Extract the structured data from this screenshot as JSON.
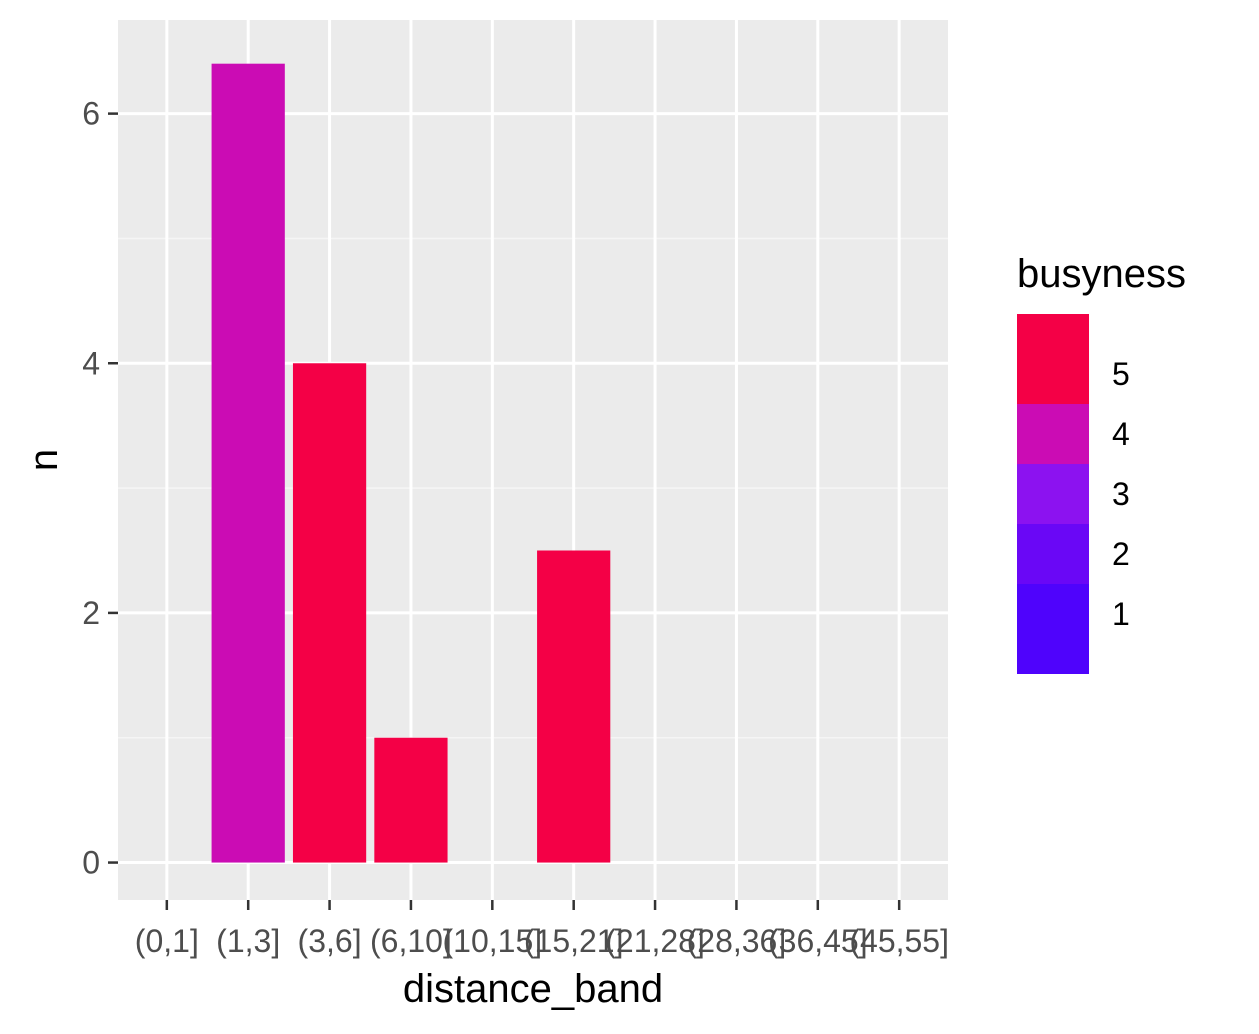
{
  "chart_data": {
    "type": "bar",
    "title": "",
    "xlabel": "distance_band",
    "ylabel": "n",
    "ylim": [
      -0.3,
      6.75
    ],
    "grid": true,
    "yticks": [
      0,
      2,
      4,
      6
    ],
    "categories": [
      "(0,1]",
      "(1,3]",
      "(3,6]",
      "(6,10]",
      "(10,15]",
      "(15,21]",
      "(21,28]",
      "(28,36]",
      "(36,45]",
      "(45,55]"
    ],
    "values": [
      0,
      6.4,
      4.0,
      1.0,
      0,
      2.5,
      0,
      0,
      0,
      0
    ],
    "busyness": [
      null,
      4,
      5,
      5,
      null,
      5,
      null,
      null,
      null,
      null
    ],
    "legend": {
      "title": "busyness",
      "placement": "right",
      "range": [
        0,
        6
      ],
      "labels": [
        5,
        4,
        3,
        2,
        1
      ],
      "scale": [
        {
          "value": 1,
          "color": "#4f03fc"
        },
        {
          "value": 2,
          "color": "#6a07f6"
        },
        {
          "value": 3,
          "color": "#8c12f0"
        },
        {
          "value": 4,
          "color": "#cb0cb4"
        },
        {
          "value": 5,
          "color": "#f40046"
        }
      ]
    },
    "colors": {
      "panel_background": "#ebebeb",
      "grid_major": "#ffffff",
      "grid_minor": "#f5f5f5",
      "tick_text": "#4d4d4d",
      "title_text": "#000000"
    }
  }
}
